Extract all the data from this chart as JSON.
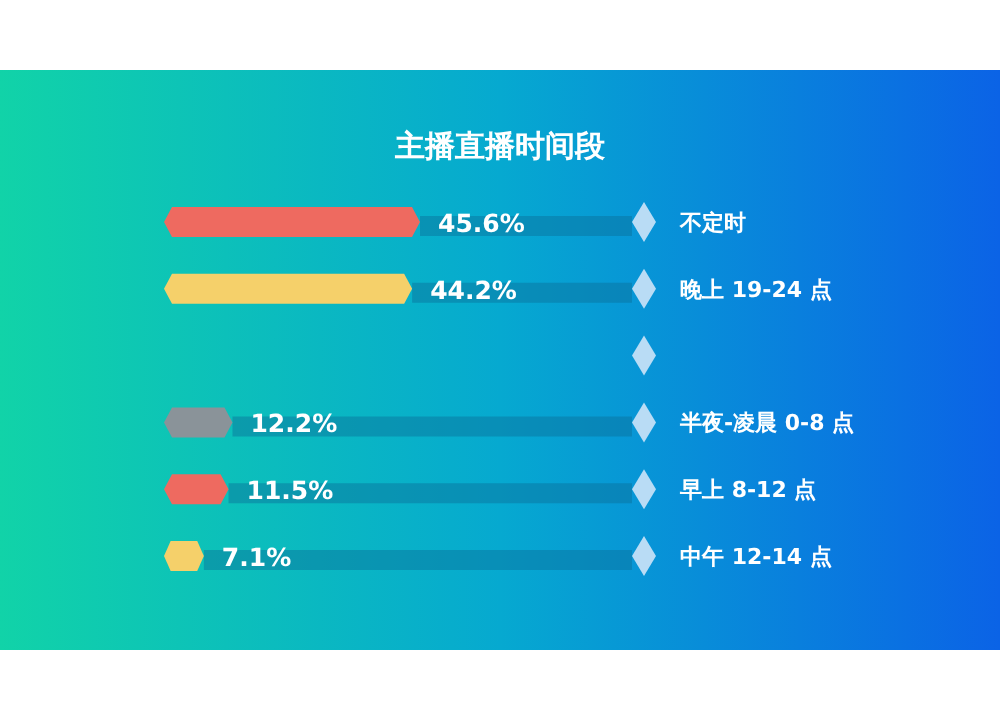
{
  "chart_data": {
    "type": "bar",
    "orientation": "horizontal",
    "title": "主播直播时间段",
    "categories": [
      "不定时",
      "晚上 19-24 点",
      null,
      "半夜-凌晨 0-8 点",
      "早上 8-12 点",
      "中午 12-14 点"
    ],
    "values": [
      45.6,
      44.2,
      null,
      12.2,
      11.5,
      7.1
    ],
    "colors": [
      "#ee6a60",
      "#f5d06a",
      "#8a9399",
      "#8a9399",
      "#ee6a60",
      "#f5d06a"
    ],
    "value_labels": [
      "45.6%",
      "44.2%",
      null,
      "12.2%",
      "11.5%",
      "7.1%"
    ]
  }
}
